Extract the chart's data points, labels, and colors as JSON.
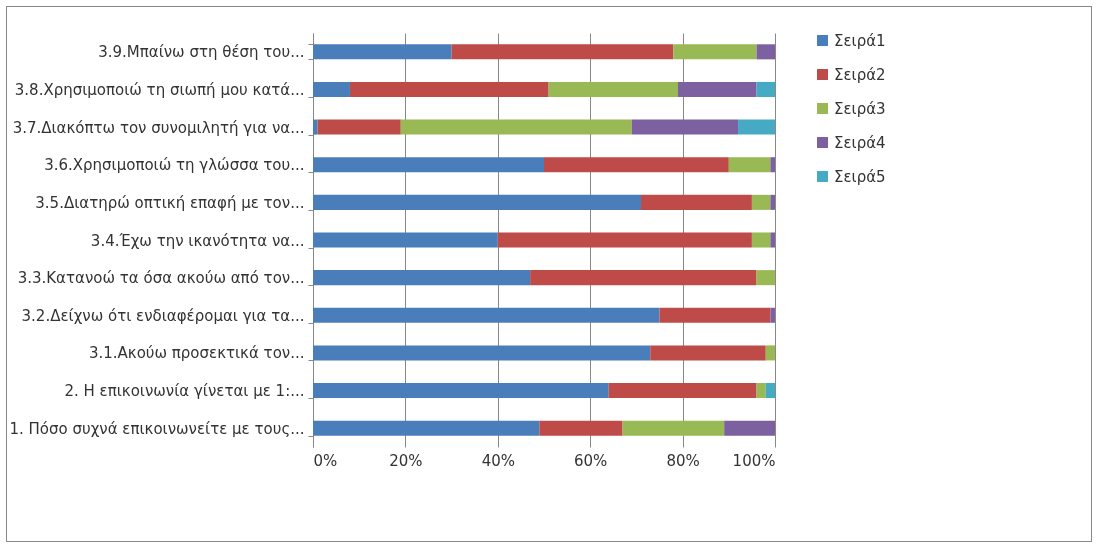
{
  "chart_data": {
    "type": "bar",
    "orientation": "horizontal",
    "stacked": true,
    "categories": [
      "3.9.Μπαίνω στη θέση του...",
      "3.8.Χρησιμοποιώ τη σιωπή μου κατά...",
      "3.7.Διακόπτω τον συνομιλητή για να...",
      "3.6.Χρησιμοποιώ τη γλώσσα του...",
      "3.5.Διατηρώ οπτική επαφή με τον...",
      "3.4.Έχω την ικανότητα να...",
      "3.3.Κατανοώ τα όσα ακούω από τον...",
      "3.2.Δείχνω ότι ενδιαφέρομαι για τα...",
      "3.1.Ακούω προσεκτικά τον...",
      "2. Η επικοινωνία γίνεται με 1:...",
      "1. Πόσο συχνά επικοινωνείτε με τους..."
    ],
    "series": [
      {
        "name": "Σειρά1",
        "color": "#4a7ebb",
        "values": [
          30,
          8,
          1,
          50,
          71,
          40,
          47,
          75,
          73,
          64,
          49
        ]
      },
      {
        "name": "Σειρά2",
        "color": "#be4b48",
        "values": [
          48,
          43,
          18,
          40,
          24,
          55,
          49,
          24,
          25,
          32,
          18
        ]
      },
      {
        "name": "Σειρά3",
        "color": "#98b954",
        "values": [
          18,
          28,
          50,
          9,
          4,
          4,
          4,
          null,
          2,
          2,
          22
        ]
      },
      {
        "name": "Σειρά4",
        "color": "#7d60a0",
        "values": [
          4,
          17,
          23,
          1,
          1,
          1,
          null,
          1,
          null,
          null,
          11
        ]
      },
      {
        "name": "Σειρά5",
        "color": "#46aac5",
        "values": [
          null,
          4,
          8,
          null,
          null,
          null,
          null,
          null,
          null,
          2,
          null
        ]
      }
    ],
    "xlim": [
      0,
      100
    ],
    "xticks": [
      {
        "value": 0,
        "label": "0%"
      },
      {
        "value": 20,
        "label": "20%"
      },
      {
        "value": 40,
        "label": "40%"
      },
      {
        "value": 60,
        "label": "60%"
      },
      {
        "value": 80,
        "label": "80%"
      },
      {
        "value": 100,
        "label": "100%"
      }
    ],
    "grid": "x",
    "legend": "right"
  }
}
